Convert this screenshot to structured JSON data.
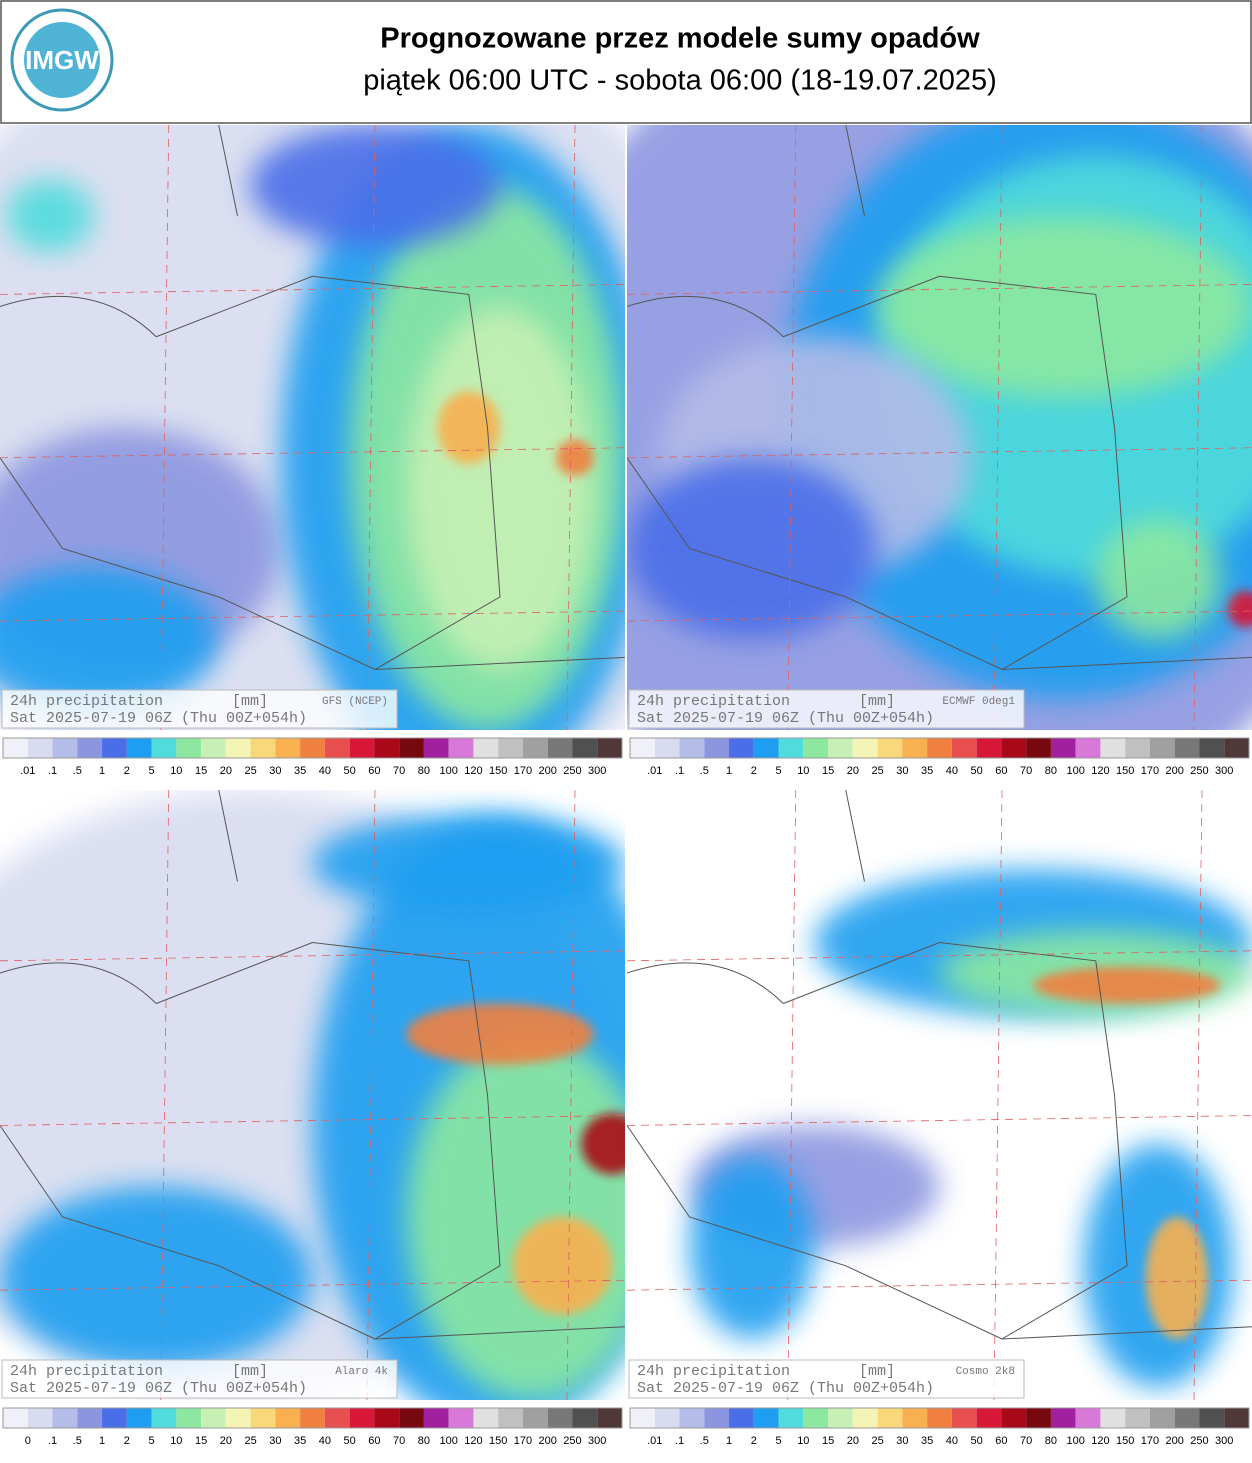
{
  "header": {
    "logo": "IMGW",
    "title": "Prognozowane przez modele sumy opadów",
    "subtitle": "piątek 06:00 UTC - sobota 06:00 (18-19.07.2025)"
  },
  "panels": [
    {
      "label": "24h precipitation",
      "unit": "[mm]",
      "model": "GFS (NCEP)",
      "valid": "Sat 2025-07-19 06Z (Thu 00Z+054h)"
    },
    {
      "label": "24h precipitation",
      "unit": "[mm]",
      "model": "ECMWF 0deg1",
      "valid": "Sat 2025-07-19 06Z (Thu 00Z+054h)"
    },
    {
      "label": "24h precipitation",
      "unit": "[mm]",
      "model": "Alaro 4k",
      "valid": "Sat 2025-07-19 06Z (Thu 00Z+054h)"
    },
    {
      "label": "24h precipitation",
      "unit": "[mm]",
      "model": "Cosmo 2k8",
      "valid": "Sat 2025-07-19 06Z (Thu 00Z+054h)"
    }
  ],
  "colorbars": [
    {
      "labels": [
        ".01",
        ".1",
        ".5",
        "1",
        "2",
        "5",
        "10",
        "15",
        "20",
        "25",
        "30",
        "35",
        "40",
        "50",
        "60",
        "70",
        "80",
        "100",
        "120",
        "150",
        "170",
        "200",
        "250",
        "300"
      ]
    },
    {
      "labels": [
        ".01",
        ".1",
        ".5",
        "1",
        "2",
        "5",
        "10",
        "15",
        "20",
        "25",
        "30",
        "35",
        "40",
        "50",
        "60",
        "70",
        "80",
        "100",
        "120",
        "150",
        "170",
        "200",
        "250",
        "300"
      ]
    },
    {
      "labels": [
        "0",
        ".1",
        ".5",
        "1",
        "2",
        "5",
        "10",
        "15",
        "20",
        "25",
        "30",
        "35",
        "40",
        "50",
        "60",
        "70",
        "80",
        "100",
        "120",
        "150",
        "170",
        "200",
        "250",
        "300"
      ]
    },
    {
      "labels": [
        ".01",
        ".1",
        ".5",
        "1",
        "2",
        "5",
        "10",
        "15",
        "20",
        "25",
        "30",
        "35",
        "40",
        "50",
        "60",
        "70",
        "80",
        "100",
        "120",
        "150",
        "170",
        "200",
        "250",
        "300"
      ]
    }
  ],
  "colors": [
    "#f0f0f8",
    "#d8dcf0",
    "#b4bce8",
    "#8c96e0",
    "#4a6ee8",
    "#1e9ef0",
    "#50dcdc",
    "#8ce8a0",
    "#c8f0b4",
    "#f4f4b4",
    "#f8d878",
    "#f8b050",
    "#f08040",
    "#e85050",
    "#d81838",
    "#a80818",
    "#780810",
    "#a020a0",
    "#d878d8",
    "#e0e0e0",
    "#c0c0c0",
    "#a0a0a0",
    "#787878",
    "#505050",
    "#503838"
  ]
}
